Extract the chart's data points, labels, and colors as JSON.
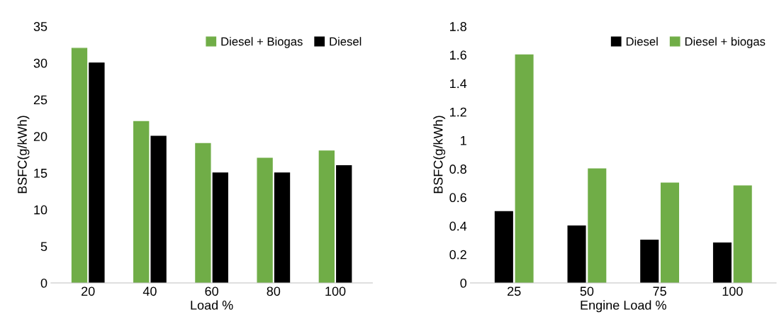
{
  "chart_data": [
    {
      "type": "bar",
      "xlabel": "Load %",
      "ylabel": "BSFC(g/kWh)",
      "categories": [
        "20",
        "40",
        "60",
        "80",
        "100"
      ],
      "series": [
        {
          "name": "Diesel + Biogas",
          "color": "#70ad47",
          "values": [
            32,
            22,
            19,
            17,
            18
          ]
        },
        {
          "name": "Diesel",
          "color": "#000000",
          "values": [
            30,
            20,
            15,
            15,
            16
          ]
        }
      ],
      "ylim": [
        0,
        35
      ],
      "yticks": [
        0,
        5,
        10,
        15,
        20,
        25,
        30,
        35
      ],
      "grid": false,
      "legend": "top right"
    },
    {
      "type": "bar",
      "xlabel": "Engine Load %",
      "ylabel": "BSFC(g/kWh)",
      "categories": [
        "25",
        "50",
        "75",
        "100"
      ],
      "series": [
        {
          "name": "Diesel",
          "color": "#000000",
          "values": [
            0.5,
            0.4,
            0.3,
            0.28
          ]
        },
        {
          "name": "Diesel + biogas",
          "color": "#70ad47",
          "values": [
            1.6,
            0.8,
            0.7,
            0.68
          ]
        }
      ],
      "ylim": [
        0,
        1.8
      ],
      "yticks": [
        {
          "value": 0,
          "label": "0"
        },
        0.2,
        0.4,
        0.6,
        0.8,
        {
          "value": 1,
          "label": "1"
        },
        1.2,
        1.4,
        1.6,
        1.8
      ],
      "grid": false,
      "legend": "top right"
    }
  ]
}
